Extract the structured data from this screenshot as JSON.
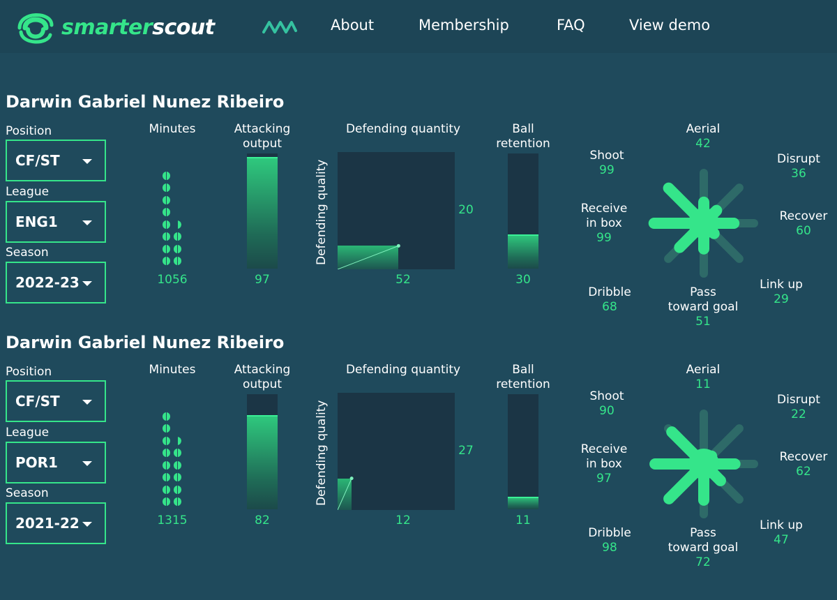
{
  "brand": {
    "name_part1": "smarter",
    "name_part2": "scout"
  },
  "icons": {
    "logo": "smarterscout-logo-icon",
    "nav_mark": "wave-mark-icon",
    "caret": "chevron-down-icon"
  },
  "colors": {
    "accent": "#35e58a",
    "background": "#1f4a5c",
    "header": "#1d4556",
    "panel": "#1b3545"
  },
  "nav": {
    "about": "About",
    "membership": "Membership",
    "faq": "FAQ",
    "view_demo": "View demo"
  },
  "labels": {
    "position": "Position",
    "league": "League",
    "season": "Season",
    "minutes": "Minutes",
    "attacking_output_l1": "Attacking",
    "attacking_output_l2": "output",
    "defending_quantity": "Defending quantity",
    "defending_quality": "Defending quality",
    "ball_retention_l1": "Ball",
    "ball_retention_l2": "retention",
    "aerial": "Aerial",
    "shoot": "Shoot",
    "disrupt": "Disrupt",
    "receive_l1": "Receive",
    "receive_l2": "in box",
    "recover": "Recover",
    "dribble": "Dribble",
    "link_up": "Link up",
    "pass_l1": "Pass",
    "pass_l2": "toward goal"
  },
  "players": [
    {
      "name": "Darwin Gabriel Nunez Ribeiro",
      "position": "CF/ST",
      "league": "ENG1",
      "season": "2022-23",
      "minutes": "1056",
      "minutes_dots": 11.5,
      "attacking_output": 97,
      "defending_quantity": 52,
      "defending_quality": 20,
      "ball_retention": 30,
      "radar": {
        "aerial": 42,
        "shoot": 99,
        "disrupt": 36,
        "receive_in_box": 99,
        "recover": 60,
        "dribble": 68,
        "link_up": 29,
        "pass_toward_goal": 51
      }
    },
    {
      "name": "Darwin Gabriel Nunez Ribeiro",
      "position": "CF/ST",
      "league": "POR1",
      "season": "2021-22",
      "minutes": "1315",
      "minutes_dots": 13.5,
      "attacking_output": 82,
      "defending_quantity": 12,
      "defending_quality": 27,
      "ball_retention": 11,
      "radar": {
        "aerial": 11,
        "shoot": 90,
        "disrupt": 22,
        "receive_in_box": 97,
        "recover": 62,
        "dribble": 98,
        "link_up": 47,
        "pass_toward_goal": 72
      }
    }
  ]
}
